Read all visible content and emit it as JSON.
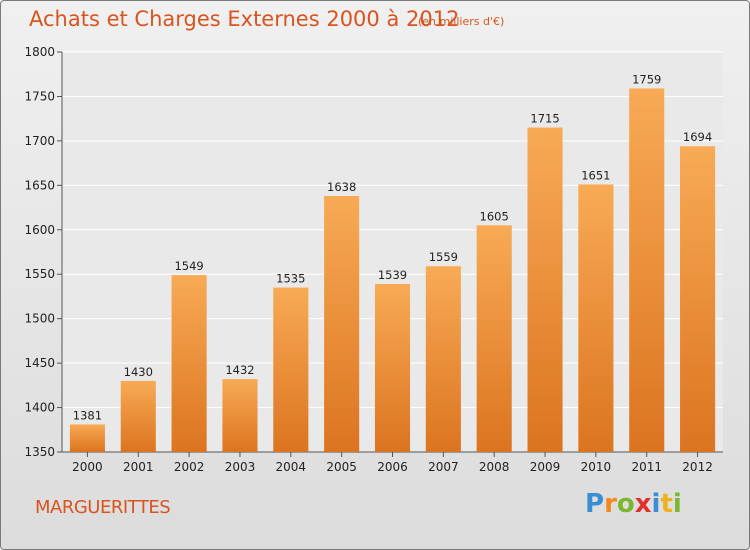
{
  "title": "Achats et Charges Externes 2000 à 2012",
  "subtitle": "(en milliers d'€)",
  "commune": "MARGUERITTES",
  "logo": {
    "letters": [
      "P",
      "r",
      "o",
      "x",
      "i",
      "t",
      "i"
    ],
    "colors": [
      "#3a8fd4",
      "#f08a1c",
      "#7cb82f",
      "#e0312a",
      "#3a8fd4",
      "#f0b21c",
      "#7cb82f"
    ]
  },
  "colors": {
    "accent": "#d9541e",
    "bar_top": "#f8aa55",
    "bar_bottom": "#dc7420"
  },
  "chart_data": {
    "type": "bar",
    "title": "Achats et Charges Externes 2000 à 2012",
    "subtitle": "(en milliers d'€)",
    "categories": [
      "2000",
      "2001",
      "2002",
      "2003",
      "2004",
      "2005",
      "2006",
      "2007",
      "2008",
      "2009",
      "2010",
      "2011",
      "2012"
    ],
    "values": [
      1381,
      1430,
      1549,
      1432,
      1535,
      1638,
      1539,
      1559,
      1605,
      1715,
      1651,
      1759,
      1694
    ],
    "ylim": [
      1350,
      1800
    ],
    "yticks": [
      1350,
      1400,
      1450,
      1500,
      1550,
      1600,
      1650,
      1700,
      1750,
      1800
    ],
    "grid": true,
    "xlabel": "",
    "ylabel": ""
  }
}
